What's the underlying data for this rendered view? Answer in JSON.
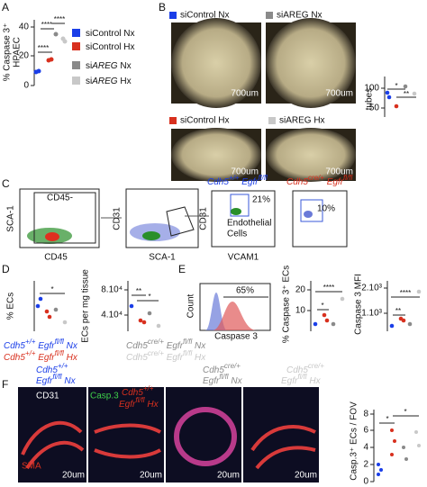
{
  "a": {
    "letter": "A",
    "ylabel": [
      "% Caspase 3⁺",
      "HPAEC"
    ],
    "ticks": [
      0,
      20,
      40
    ],
    "stars": [
      "****",
      "****",
      "****"
    ],
    "legend": [
      {
        "pre": "si",
        "gene": "Control",
        "cond": " Nx"
      },
      {
        "pre": "si",
        "gene": "Control",
        "cond": " Hx"
      },
      {
        "pre": "si",
        "gene": "AREG",
        "cond": " Nx"
      },
      {
        "pre": "si",
        "gene": "AREG",
        "cond": " Hx"
      }
    ]
  },
  "b": {
    "letter": "B",
    "legend": [
      "siControl Nx",
      "siAREG Nx",
      "siControl Hx",
      "siAREG Hx"
    ],
    "scale": [
      "700um",
      "700um",
      "700um",
      "700um"
    ],
    "ylabel": "tubes",
    "ticks": [
      100,
      50
    ],
    "stars": [
      "*",
      "**"
    ]
  },
  "c": {
    "letter": "C",
    "gate1": "CD45-",
    "y1": "SCA-1",
    "x1": "CD45",
    "y2": "CD31",
    "x2": "SCA-1",
    "head1": {
      "gene1": "Cdh5",
      "sup1": "+/+",
      "gene2": " Egfr",
      "sup2": "fl/fl"
    },
    "pct1": "21%",
    "ec": [
      "Endothelial",
      "Cells"
    ],
    "y3": "CD31",
    "x3": "VCAM1",
    "head2": {
      "gene1": "Cdh5",
      "sup1": "cre/+",
      "gene2": " Egfr",
      "sup2": "fl/fl"
    },
    "pct2": "10%"
  },
  "d": {
    "letter": "D",
    "ylabel1": "% ECs",
    "star1": "*",
    "ylabel2": "ECs per mg tissue",
    "ticks2": [
      "8.10⁴",
      "4.10⁴"
    ],
    "stars2": [
      "**",
      "*"
    ]
  },
  "e": {
    "letter": "E",
    "pct": "65%",
    "count": "Count",
    "xlabel": "Caspase 3",
    "ylabel2": "% Caspase 3⁺ ECs",
    "ticks2": [
      20,
      10
    ],
    "stars2": [
      "****",
      "*"
    ],
    "ylabel3": "Caspase 3 MFI",
    "ticks3": [
      "2.10³",
      "1.10³"
    ],
    "stars3": [
      "****",
      "**"
    ]
  },
  "legend": [
    {
      "gene1": "Cdh5",
      "sup1": "+/+",
      "gene2": " Egfr",
      "sup2": "fl/fl",
      "cond": " Nx"
    },
    {
      "gene1": "Cdh5",
      "sup1": "cre/+",
      "gene2": " Egfr",
      "sup2": "fl/fl",
      "cond": " Nx"
    },
    {
      "gene1": "Cdh5",
      "sup1": "+/+",
      "gene2": " Egfr",
      "sup2": "fl/fl",
      "cond": " Hx"
    },
    {
      "gene1": "Cdh5",
      "sup1": "cre/+",
      "gene2": " Egfr",
      "sup2": "fl/fl",
      "cond": " Hx"
    }
  ],
  "f": {
    "letter": "F",
    "stain": [
      "Casp.3",
      "CD31",
      "SMA"
    ],
    "scale": [
      "20um",
      "20um",
      "20um",
      "20um"
    ],
    "ylabel": "Casp.3⁺ ECs / FOV",
    "ticks": [
      8,
      6,
      4,
      2,
      0
    ],
    "stars": [
      "*",
      "*"
    ]
  }
}
